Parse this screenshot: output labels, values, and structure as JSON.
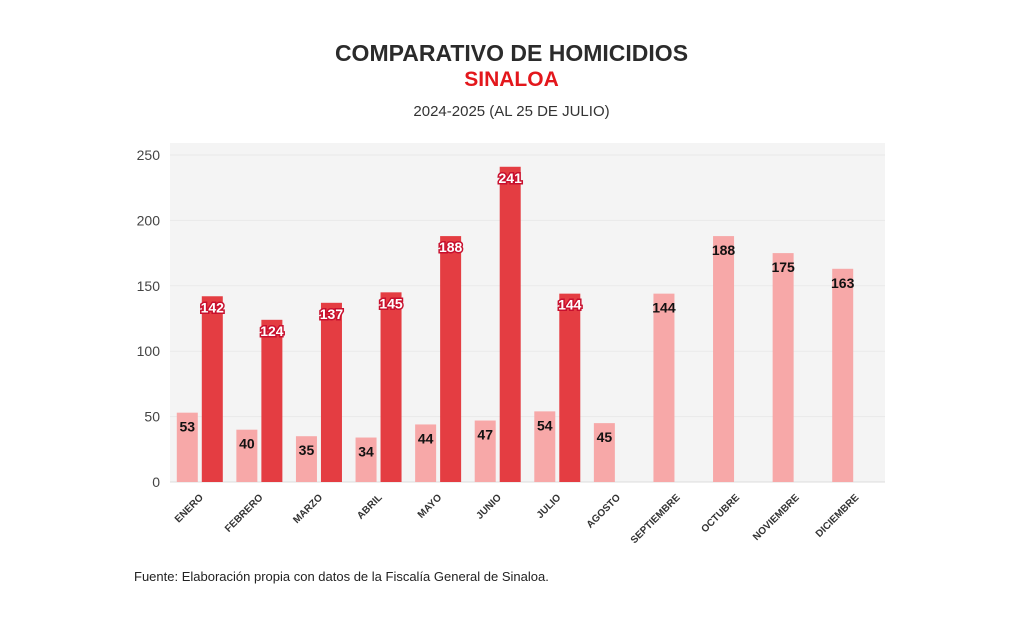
{
  "title": "COMPARATIVO DE HOMICIDIOS",
  "subtitle": "SINALOA",
  "period": "2024-2025 (AL 25 DE JULIO)",
  "source": "Fuente: Elaboración propia con datos de la Fiscalía General de Sinaloa.",
  "chart_data": {
    "type": "bar",
    "title": "COMPARATIVO DE HOMICIDIOS SINALOA",
    "categories": [
      "ENERO",
      "FEBRERO",
      "MARZO",
      "ABRIL",
      "MAYO",
      "JUNIO",
      "JULIO",
      "AGOSTO",
      "SEPTIEMBRE",
      "OCTUBRE",
      "NOVIEMBRE",
      "DICIEMBRE"
    ],
    "series": [
      {
        "name": "2024",
        "color": "#f7a8a8",
        "values": [
          53,
          40,
          35,
          34,
          44,
          47,
          54,
          45,
          144,
          188,
          175,
          163
        ]
      },
      {
        "name": "2025",
        "color": "#e43d42",
        "values": [
          142,
          124,
          137,
          145,
          188,
          241,
          144,
          null,
          null,
          null,
          null,
          null
        ]
      }
    ],
    "yticks": [
      0,
      50,
      100,
      150,
      200,
      250
    ],
    "ylim": [
      0,
      250
    ],
    "grid": true,
    "xlabel": "",
    "ylabel": ""
  }
}
